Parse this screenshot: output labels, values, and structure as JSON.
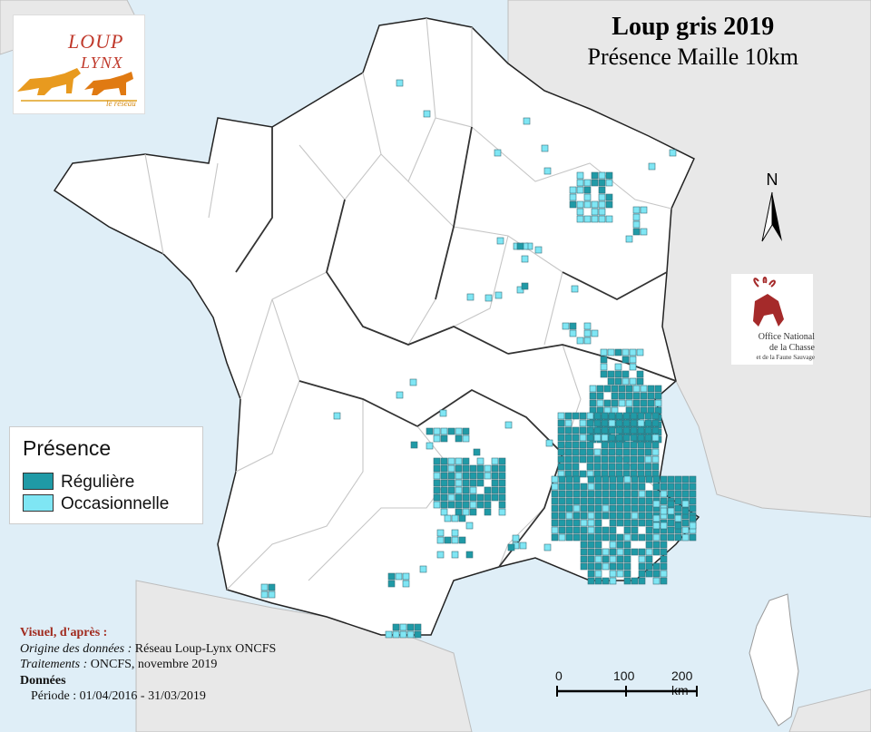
{
  "title": {
    "line1": "Loup gris 2019",
    "line2": "Présence Maille 10km"
  },
  "logo": {
    "line1": "LOUP",
    "line2": "LYNX",
    "sub": "le réseau"
  },
  "north_label": "N",
  "oncfs_logo": {
    "line1": "Office National",
    "line2": "de la Chasse",
    "line3": "et de la Faune Sauvage"
  },
  "legend": {
    "title": "Présence",
    "items": [
      {
        "label": "Régulière",
        "color": "#1f9aa6"
      },
      {
        "label": "Occasionnelle",
        "color": "#7fe6f4"
      }
    ]
  },
  "credits": {
    "heading": "Visuel, d'après :",
    "origin_label": "Origine des données :",
    "origin_value": "Réseau Loup-Lynx ONCFS",
    "processing_label": "Traitements :",
    "processing_value": "ONCFS, novembre 2019",
    "data_label": "Données",
    "period": "Période : 01/04/2016 - 31/03/2019"
  },
  "scale_bar": {
    "labels": [
      "0",
      "100",
      "200 km"
    ]
  },
  "colors": {
    "sea": "#dfeef7",
    "land": "#ffffff",
    "neighbors": "#e8e8e8",
    "regular": "#1f9aa6",
    "occasional": "#7fe6f4"
  }
}
